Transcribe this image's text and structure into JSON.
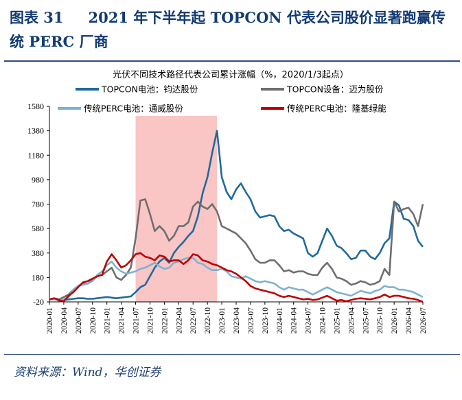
{
  "figure": {
    "number": "图表 31",
    "title": "2021 年下半年起 TOPCON 代表公司股价显著跑赢传统 PERC 厂商",
    "source": "资料来源：Wind，华创证券"
  },
  "chart_data": {
    "type": "line",
    "title": "光伏不同技术路径代表公司累计涨幅（%，2020/1/3起点）",
    "xlabel": "",
    "ylabel": "",
    "ylim": [
      -20,
      1580
    ],
    "yticks": [
      -20,
      180,
      380,
      580,
      780,
      980,
      1180,
      1380,
      1580
    ],
    "xticks": [
      "2020-01",
      "2020-04",
      "2020-07",
      "2020-10",
      "2021-01",
      "2021-04",
      "2021-07",
      "2021-10",
      "2022-01",
      "2022-04",
      "2022-07",
      "2022-10",
      "2023-01",
      "2023-04",
      "2023-07",
      "2023-10",
      "2024-01",
      "2024-04",
      "2024-07",
      "2024-10",
      "2025-01",
      "2025-04",
      "2025-07",
      "2025-10",
      "2026-01",
      "2026-04",
      "2026-07"
    ],
    "grid": false,
    "legend_position": "top",
    "highlight_band": {
      "from": "2021-07",
      "to": "2022-12",
      "color": "#f9c5c5"
    },
    "x": [
      "2020-01",
      "2020-02",
      "2020-03",
      "2020-04",
      "2020-05",
      "2020-06",
      "2020-07",
      "2020-08",
      "2020-09",
      "2020-10",
      "2020-11",
      "2020-12",
      "2021-01",
      "2021-02",
      "2021-03",
      "2021-04",
      "2021-05",
      "2021-06",
      "2021-07",
      "2021-08",
      "2021-09",
      "2021-10",
      "2021-11",
      "2021-12",
      "2022-01",
      "2022-02",
      "2022-03",
      "2022-04",
      "2022-05",
      "2022-06",
      "2022-07",
      "2022-08",
      "2022-09",
      "2022-10",
      "2022-11",
      "2022-12",
      "2023-01",
      "2023-02",
      "2023-03",
      "2023-04",
      "2023-05",
      "2023-06",
      "2023-07",
      "2023-08",
      "2023-09",
      "2023-10",
      "2023-11",
      "2023-12",
      "2024-01",
      "2024-02",
      "2024-03",
      "2024-04",
      "2024-05",
      "2024-06",
      "2024-07",
      "2024-08",
      "2024-09",
      "2024-10",
      "2024-11",
      "2024-12",
      "2025-01",
      "2025-02",
      "2025-03",
      "2025-04",
      "2025-05",
      "2025-06",
      "2025-07",
      "2025-08",
      "2025-09",
      "2025-10",
      "2025-11",
      "2025-12",
      "2026-01",
      "2026-02",
      "2026-03",
      "2026-04",
      "2026-05",
      "2026-06",
      "2026-07"
    ],
    "series": [
      {
        "name": "TOPCON电池：钧达股份",
        "color": "#1f6a9c",
        "values": [
          0,
          5,
          -10,
          -5,
          0,
          5,
          10,
          10,
          5,
          5,
          10,
          15,
          20,
          15,
          10,
          15,
          20,
          25,
          60,
          100,
          120,
          190,
          260,
          310,
          340,
          300,
          380,
          430,
          470,
          520,
          560,
          680,
          870,
          1000,
          1200,
          1380,
          1000,
          880,
          820,
          900,
          950,
          880,
          820,
          720,
          670,
          680,
          690,
          680,
          600,
          560,
          570,
          540,
          520,
          500,
          380,
          350,
          380,
          480,
          580,
          520,
          440,
          420,
          380,
          330,
          340,
          400,
          400,
          350,
          330,
          380,
          460,
          500,
          800,
          770,
          660,
          650,
          600,
          480,
          430
        ]
      },
      {
        "name": "TOPCON设备：迈为股份",
        "color": "#6e6e6e",
        "values": [
          0,
          10,
          0,
          20,
          40,
          80,
          110,
          130,
          130,
          160,
          190,
          200,
          230,
          260,
          180,
          160,
          200,
          260,
          500,
          810,
          820,
          700,
          560,
          600,
          560,
          480,
          520,
          600,
          600,
          630,
          760,
          800,
          760,
          740,
          780,
          720,
          600,
          580,
          560,
          540,
          500,
          460,
          400,
          330,
          300,
          300,
          320,
          320,
          280,
          230,
          240,
          220,
          230,
          230,
          210,
          200,
          200,
          260,
          300,
          250,
          180,
          170,
          150,
          120,
          130,
          150,
          140,
          120,
          130,
          150,
          250,
          200,
          800,
          720,
          740,
          750,
          700,
          600,
          780
        ]
      },
      {
        "name": "传统PERC电池：通威股份",
        "color": "#7fb2cf",
        "values": [
          0,
          0,
          -5,
          0,
          20,
          80,
          110,
          120,
          130,
          150,
          200,
          230,
          280,
          310,
          260,
          230,
          210,
          220,
          230,
          250,
          260,
          280,
          300,
          270,
          250,
          260,
          300,
          310,
          330,
          340,
          340,
          300,
          290,
          260,
          240,
          240,
          250,
          230,
          190,
          180,
          170,
          190,
          170,
          150,
          140,
          150,
          140,
          130,
          100,
          80,
          100,
          90,
          80,
          80,
          60,
          40,
          60,
          80,
          100,
          80,
          60,
          50,
          40,
          30,
          50,
          70,
          60,
          50,
          70,
          80,
          110,
          100,
          100,
          80,
          80,
          70,
          60,
          40,
          20
        ]
      },
      {
        "name": "传统PERC电池：隆基绿能",
        "color": "#c00000",
        "values": [
          0,
          10,
          -5,
          -15,
          30,
          60,
          100,
          140,
          150,
          170,
          190,
          200,
          310,
          370,
          320,
          260,
          280,
          320,
          370,
          380,
          350,
          340,
          320,
          360,
          350,
          310,
          320,
          320,
          290,
          320,
          370,
          360,
          320,
          310,
          290,
          280,
          260,
          240,
          230,
          210,
          180,
          150,
          110,
          90,
          80,
          70,
          60,
          50,
          30,
          20,
          30,
          20,
          10,
          0,
          5,
          -5,
          0,
          15,
          30,
          10,
          -10,
          -5,
          -15,
          -5,
          5,
          10,
          5,
          0,
          10,
          20,
          40,
          20,
          30,
          30,
          20,
          10,
          5,
          -5,
          -20
        ]
      }
    ]
  }
}
